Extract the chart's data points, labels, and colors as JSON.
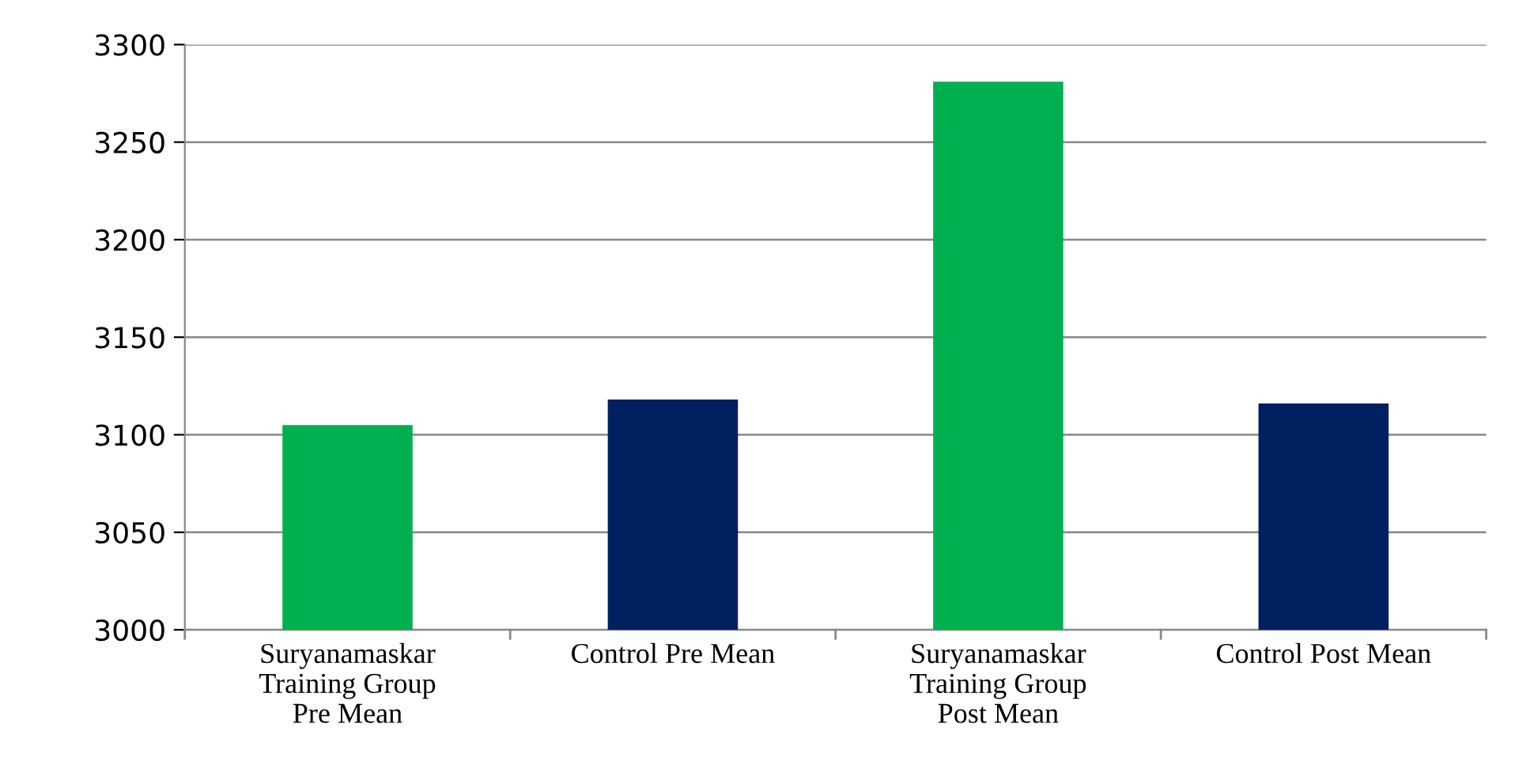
{
  "chart_data": {
    "type": "bar",
    "categories": [
      "Suryanamaskar\nTraining Group\nPre Mean",
      "Control Pre Mean",
      "Suryanamaskar\nTraining Group\nPost Mean",
      "Control Post Mean"
    ],
    "values": [
      3105,
      3118,
      3281,
      3116
    ],
    "colors": [
      "#00b050",
      "#002060",
      "#00b050",
      "#002060"
    ],
    "ylim": [
      3000,
      3300
    ],
    "yticks": [
      3000,
      3050,
      3100,
      3150,
      3200,
      3250,
      3300
    ],
    "grid": "y",
    "legend": false
  }
}
